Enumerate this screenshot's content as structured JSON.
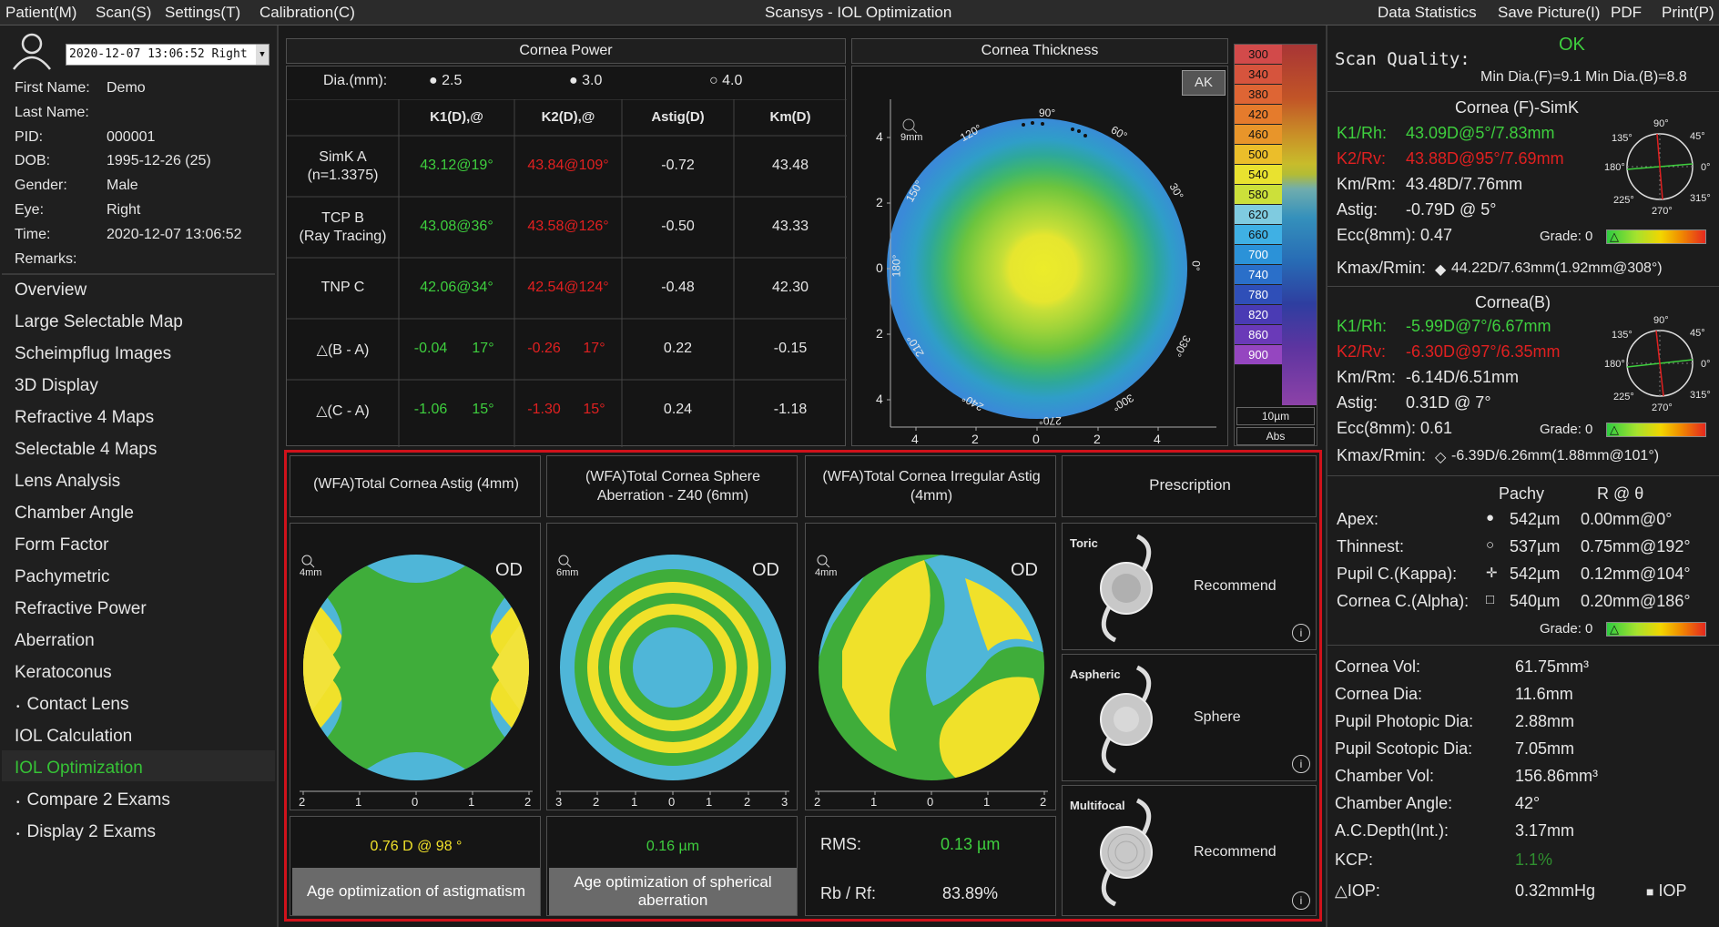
{
  "menu": {
    "patient": "Patient(M)",
    "scan": "Scan(S)",
    "settings": "Settings(T)",
    "calibration": "Calibration(C)",
    "title": "Scansys - IOL Optimization",
    "data_statistics": "Data Statistics",
    "save_picture": "Save Picture(I)",
    "pdf": "PDF",
    "print": "Print(P)"
  },
  "patient": {
    "exam_select": "2020-12-07 13:06:52 Right",
    "labels": {
      "first_name": "First Name:",
      "last_name": "Last Name:",
      "pid": "PID:",
      "dob": "DOB:",
      "gender": "Gender:",
      "eye": "Eye:",
      "time": "Time:",
      "remarks": "Remarks:"
    },
    "first_name": "Demo",
    "pid": "000001",
    "dob": "1995-12-26  (25)",
    "gender": "Male",
    "eye": "Right",
    "time": "2020-12-07 13:06:52"
  },
  "nav": [
    "Overview",
    "Large Selectable Map",
    "Scheimpflug Images",
    "3D Display",
    "Refractive 4 Maps",
    "Selectable 4 Maps",
    "Lens Analysis",
    "Chamber Angle",
    "Form Factor",
    "Pachymetric",
    "Refractive Power",
    "Aberration",
    "Keratoconus",
    "Contact Lens",
    "IOL Calculation",
    "IOL Optimization",
    "Compare 2 Exams",
    "Display 2 Exams"
  ],
  "cornea_power": {
    "title": "Cornea Power",
    "dia_label": "Dia.(mm):",
    "dias": [
      "2.5",
      "3.0",
      "4.0"
    ],
    "headers": [
      "K1(D),@",
      "K2(D),@",
      "Astig(D)",
      "Km(D)"
    ],
    "rows": [
      {
        "name": "SimK A\n(n=1.3375)",
        "k1": "43.12@19°",
        "k2": "43.84@109°",
        "astig": "-0.72",
        "km": "43.48"
      },
      {
        "name": "TCP B\n(Ray Tracing)",
        "k1": "43.08@36°",
        "k2": "43.58@126°",
        "astig": "-0.50",
        "km": "43.33"
      },
      {
        "name": "TNP C",
        "k1": "42.06@34°",
        "k2": "42.54@124°",
        "astig": "-0.48",
        "km": "42.30"
      },
      {
        "name": "△(B - A)",
        "k1": "-0.04",
        "k1a": "17°",
        "k2": "-0.26",
        "k2a": "17°",
        "astig": "0.22",
        "km": "-0.15"
      },
      {
        "name": "△(C - A)",
        "k1": "-1.06",
        "k1a": "15°",
        "k2": "-1.30",
        "k2a": "15°",
        "astig": "0.24",
        "km": "-1.18"
      }
    ]
  },
  "thickness": {
    "title": "Cornea Thickness",
    "ak": "AK",
    "zoom": "9mm",
    "scale": [
      "300",
      "340",
      "380",
      "420",
      "460",
      "500",
      "540",
      "580",
      "620",
      "660",
      "700",
      "740",
      "780",
      "820",
      "860",
      "900"
    ],
    "unit": "10µm",
    "mode": "Abs",
    "yticks": [
      "4",
      "2",
      "0",
      "2",
      "4"
    ],
    "xticks": [
      "4",
      "2",
      "0",
      "2",
      "4"
    ],
    "angles": [
      "90°",
      "60°",
      "30°",
      "0°",
      "330°",
      "300°",
      "270°",
      "240°",
      "210°",
      "180°",
      "150°",
      "120°"
    ]
  },
  "wfa": {
    "astig_title": "(WFA)Total Cornea Astig (4mm)",
    "sphere_title": "(WFA)Total Cornea Sphere Aberration - Z40 (6mm)",
    "irreg_title": "(WFA)Total Cornea Irregular Astig (4mm)",
    "prescription_title": "Prescription",
    "od": "OD",
    "zoom4": "4mm",
    "zoom6": "6mm",
    "ticks_astig": [
      "2",
      "1",
      "0",
      "1",
      "2"
    ],
    "ticks_sphere": [
      "3",
      "2",
      "1",
      "0",
      "1",
      "2",
      "3"
    ],
    "ticks_irreg": [
      "2",
      "1",
      "0",
      "1",
      "2"
    ],
    "astig_value": "0.76 D @ 98 °",
    "sphere_value": "0.16 µm",
    "rms_label": "RMS:",
    "rms_value": "0.13 µm",
    "rbrf_label": "Rb / Rf:",
    "rbrf_value": "83.89%",
    "btn_astig": "Age optimization of astigmatism",
    "btn_sphere": "Age optimization of spherical aberration",
    "toric": "Toric",
    "toric_rec": "Recommend",
    "aspheric": "Aspheric",
    "aspheric_rec": "Sphere",
    "multifocal": "Multifocal",
    "multifocal_rec": "Recommend"
  },
  "right": {
    "scan_quality_label": "Scan Quality:",
    "scan_quality": "OK",
    "min_dia": "Min Dia.(F)=9.1  Min Dia.(B)=8.8",
    "front": {
      "title": "Cornea (F)-SimK",
      "k1_label": "K1/Rh:",
      "k1": "43.09D@5°/7.83mm",
      "k2_label": "K2/Rv:",
      "k2": "43.88D@95°/7.69mm",
      "km_label": "Km/Rm:",
      "km": "43.48D/7.76mm",
      "astig_label": "Astig:",
      "astig": "-0.79D @ 5°",
      "ecc_label": "Ecc(8mm):",
      "ecc": "0.47",
      "grade": "Grade: 0",
      "kmax_label": "Kmax/Rmin:",
      "kmax": "44.22D/7.63mm(1.92mm@308°)"
    },
    "back": {
      "title": "Cornea(B)",
      "k1_label": "K1/Rh:",
      "k1": "-5.99D@7°/6.67mm",
      "k2_label": "K2/Rv:",
      "k2": "-6.30D@97°/6.35mm",
      "km_label": "Km/Rm:",
      "km": "-6.14D/6.51mm",
      "astig_label": "Astig:",
      "astig": "0.31D @ 7°",
      "ecc_label": "Ecc(8mm):",
      "ecc": "0.61",
      "grade": "Grade: 0",
      "kmax_label": "Kmax/Rmin:",
      "kmax": "-6.39D/6.26mm(1.88mm@101°)"
    },
    "dial": {
      "a90": "90°",
      "a45": "45°",
      "a135": "135°",
      "a180": "180°",
      "a0": "0°",
      "a225": "225°",
      "a270": "270°",
      "a315": "315°"
    },
    "pachy": {
      "h1": "Pachy",
      "h2": "R @ θ",
      "rows": [
        {
          "label": "Apex:",
          "p": "542µm",
          "r": "0.00mm@0°"
        },
        {
          "label": "Thinnest:",
          "p": "537µm",
          "r": "0.75mm@192°"
        },
        {
          "label": "Pupil C.(Kappa):",
          "p": "542µm",
          "r": "0.12mm@104°"
        },
        {
          "label": "Cornea C.(Alpha):",
          "p": "540µm",
          "r": "0.20mm@186°"
        }
      ],
      "grade": "Grade: 0"
    },
    "stats": [
      {
        "label": "Cornea Vol:",
        "value": "61.75mm³"
      },
      {
        "label": "Cornea Dia:",
        "value": "11.6mm"
      },
      {
        "label": "Pupil Photopic Dia:",
        "value": "2.88mm"
      },
      {
        "label": "Pupil Scotopic Dia:",
        "value": "7.05mm"
      },
      {
        "label": "Chamber Vol:",
        "value": "156.86mm³"
      },
      {
        "label": "Chamber Angle:",
        "value": "42°"
      },
      {
        "label": "A.C.Depth(Int.):",
        "value": "3.17mm"
      },
      {
        "label": "KCP:",
        "value": "1.1%"
      },
      {
        "label": "△IOP:",
        "value": "0.32mmHg"
      }
    ],
    "iop": "IOP"
  },
  "colors": {
    "accent_green": "#36c236",
    "red": "#e02020",
    "highlight_border": "#d0121b"
  }
}
